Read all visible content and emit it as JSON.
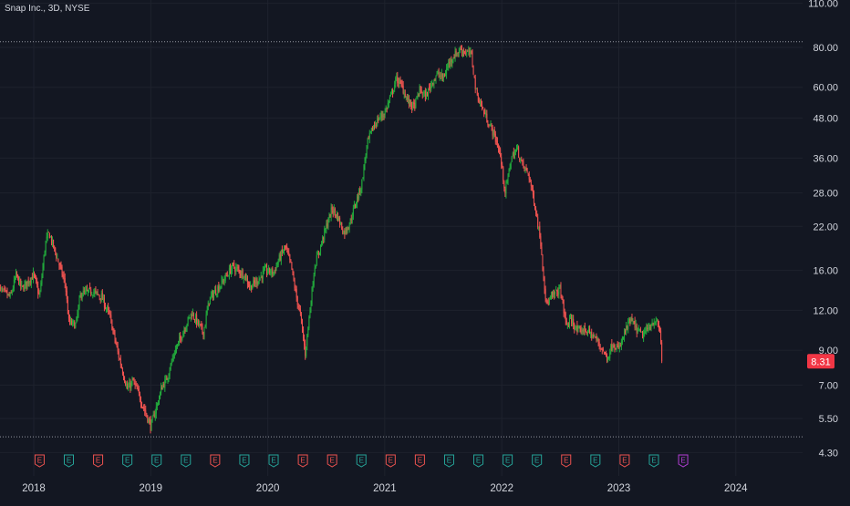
{
  "header": {
    "symbol_title": "Snap Inc., 3D, NYSE"
  },
  "colors": {
    "background": "#131722",
    "grid": "#1e222d",
    "up": "#26a69a",
    "up_bright": "#22ab3c",
    "down": "#ef5350",
    "price_badge": "#f23645",
    "axis_text": "#d1d4dc",
    "dotted_line": "#9598a1",
    "earnings_red": "#ef5350",
    "earnings_green": "#26a69a",
    "earnings_upcoming": "#b43ed6"
  },
  "chart_data": {
    "type": "candlestick",
    "scale": "log",
    "yticks": [
      "110.00",
      "80.00",
      "60.00",
      "48.00",
      "36.00",
      "28.00",
      "22.00",
      "16.00",
      "12.00",
      "9.00",
      "7.00",
      "5.50",
      "4.30"
    ],
    "xticks": [
      "2018",
      "2019",
      "2020",
      "2021",
      "2022",
      "2023",
      "2024"
    ],
    "last_price": "8.31",
    "reference_lines": [
      83.34,
      4.82
    ],
    "earnings_markers": [
      {
        "date": 2018.05,
        "result": "miss"
      },
      {
        "date": 2018.3,
        "result": "beat"
      },
      {
        "date": 2018.55,
        "result": "miss"
      },
      {
        "date": 2018.8,
        "result": "beat"
      },
      {
        "date": 2019.05,
        "result": "beat"
      },
      {
        "date": 2019.3,
        "result": "beat"
      },
      {
        "date": 2019.55,
        "result": "miss"
      },
      {
        "date": 2019.8,
        "result": "beat"
      },
      {
        "date": 2020.05,
        "result": "beat"
      },
      {
        "date": 2020.3,
        "result": "miss"
      },
      {
        "date": 2020.55,
        "result": "miss"
      },
      {
        "date": 2020.8,
        "result": "beat"
      },
      {
        "date": 2021.05,
        "result": "miss"
      },
      {
        "date": 2021.3,
        "result": "miss"
      },
      {
        "date": 2021.55,
        "result": "beat"
      },
      {
        "date": 2021.8,
        "result": "beat"
      },
      {
        "date": 2022.05,
        "result": "beat"
      },
      {
        "date": 2022.3,
        "result": "beat"
      },
      {
        "date": 2022.55,
        "result": "miss"
      },
      {
        "date": 2022.8,
        "result": "beat"
      },
      {
        "date": 2023.05,
        "result": "miss"
      },
      {
        "date": 2023.3,
        "result": "beat"
      },
      {
        "date": 2023.55,
        "result": "upcoming"
      }
    ],
    "price_path": [
      [
        2017.7,
        14.0
      ],
      [
        2017.8,
        13.2
      ],
      [
        2017.85,
        15.5
      ],
      [
        2017.9,
        14.0
      ],
      [
        2017.95,
        14.8
      ],
      [
        2018.0,
        15.5
      ],
      [
        2018.05,
        13.2
      ],
      [
        2018.1,
        19.5
      ],
      [
        2018.13,
        21.0
      ],
      [
        2018.2,
        17.5
      ],
      [
        2018.27,
        14.5
      ],
      [
        2018.3,
        11.0
      ],
      [
        2018.36,
        10.8
      ],
      [
        2018.4,
        13.5
      ],
      [
        2018.5,
        13.8
      ],
      [
        2018.58,
        13.2
      ],
      [
        2018.65,
        11.5
      ],
      [
        2018.72,
        8.8
      ],
      [
        2018.8,
        6.8
      ],
      [
        2018.85,
        7.2
      ],
      [
        2018.9,
        6.5
      ],
      [
        2018.95,
        5.8
      ],
      [
        2019.0,
        5.2
      ],
      [
        2019.05,
        6.0
      ],
      [
        2019.1,
        7.0
      ],
      [
        2019.13,
        7.2
      ],
      [
        2019.2,
        8.8
      ],
      [
        2019.3,
        10.8
      ],
      [
        2019.35,
        11.8
      ],
      [
        2019.45,
        10.2
      ],
      [
        2019.5,
        13.0
      ],
      [
        2019.6,
        14.5
      ],
      [
        2019.7,
        16.5
      ],
      [
        2019.8,
        15.5
      ],
      [
        2019.85,
        14.2
      ],
      [
        2019.92,
        15.0
      ],
      [
        2019.98,
        16.0
      ],
      [
        2020.05,
        15.8
      ],
      [
        2020.1,
        17.5
      ],
      [
        2020.15,
        19.0
      ],
      [
        2020.2,
        16.5
      ],
      [
        2020.24,
        13.5
      ],
      [
        2020.28,
        11.5
      ],
      [
        2020.32,
        8.8
      ],
      [
        2020.36,
        12.0
      ],
      [
        2020.4,
        16.5
      ],
      [
        2020.45,
        19.0
      ],
      [
        2020.5,
        22.0
      ],
      [
        2020.55,
        25.0
      ],
      [
        2020.6,
        23.5
      ],
      [
        2020.65,
        21.0
      ],
      [
        2020.7,
        22.5
      ],
      [
        2020.75,
        26.0
      ],
      [
        2020.8,
        29.5
      ],
      [
        2020.85,
        40.0
      ],
      [
        2020.9,
        45.0
      ],
      [
        2020.95,
        48.0
      ],
      [
        2021.0,
        50.0
      ],
      [
        2021.05,
        56.0
      ],
      [
        2021.1,
        64.0
      ],
      [
        2021.15,
        60.0
      ],
      [
        2021.2,
        54.0
      ],
      [
        2021.25,
        52.0
      ],
      [
        2021.3,
        59.0
      ],
      [
        2021.35,
        56.0
      ],
      [
        2021.4,
        62.0
      ],
      [
        2021.45,
        66.0
      ],
      [
        2021.5,
        64.0
      ],
      [
        2021.55,
        72.0
      ],
      [
        2021.6,
        76.0
      ],
      [
        2021.65,
        79.0
      ],
      [
        2021.7,
        77.0
      ],
      [
        2021.74,
        76.0
      ],
      [
        2021.78,
        58.0
      ],
      [
        2021.83,
        52.0
      ],
      [
        2021.88,
        47.0
      ],
      [
        2021.93,
        43.0
      ],
      [
        2021.98,
        38.0
      ],
      [
        2022.03,
        28.0
      ],
      [
        2022.08,
        36.0
      ],
      [
        2022.13,
        38.5
      ],
      [
        2022.18,
        34.0
      ],
      [
        2022.23,
        32.0
      ],
      [
        2022.28,
        26.0
      ],
      [
        2022.33,
        20.0
      ],
      [
        2022.38,
        12.5
      ],
      [
        2022.45,
        13.5
      ],
      [
        2022.5,
        14.0
      ],
      [
        2022.55,
        10.8
      ],
      [
        2022.6,
        11.2
      ],
      [
        2022.65,
        10.2
      ],
      [
        2022.7,
        10.5
      ],
      [
        2022.75,
        10.2
      ],
      [
        2022.8,
        9.8
      ],
      [
        2022.85,
        9.2
      ],
      [
        2022.9,
        8.5
      ],
      [
        2022.95,
        9.5
      ],
      [
        2023.0,
        9.0
      ],
      [
        2023.05,
        10.2
      ],
      [
        2023.1,
        11.2
      ],
      [
        2023.15,
        10.5
      ],
      [
        2023.2,
        10.0
      ],
      [
        2023.25,
        10.5
      ],
      [
        2023.3,
        11.2
      ],
      [
        2023.35,
        10.5
      ],
      [
        2023.37,
        8.31
      ]
    ]
  }
}
